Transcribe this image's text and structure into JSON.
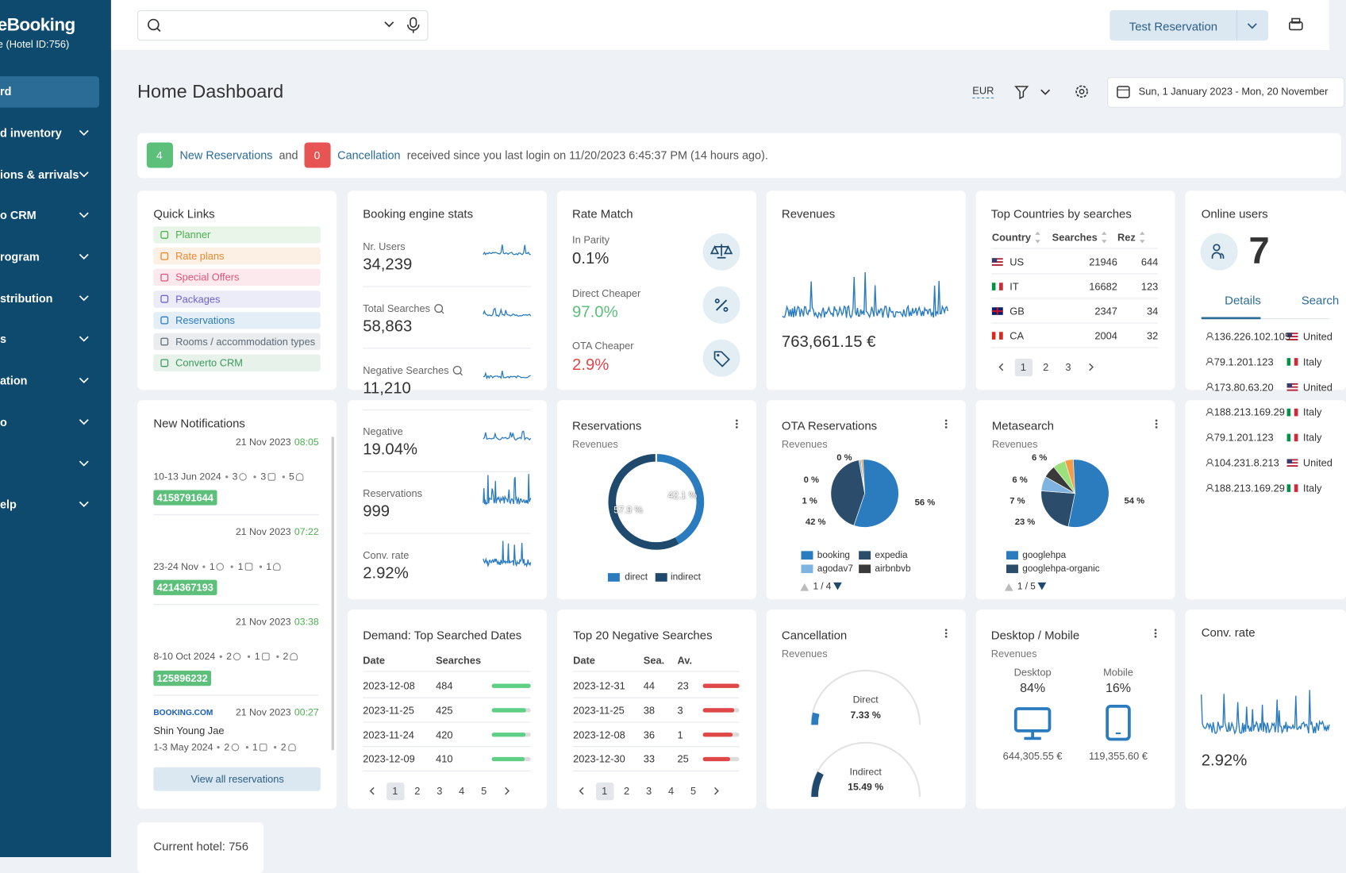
{
  "sidebar": {
    "brand": "eBooking",
    "hotel": "e (Hotel ID:756)",
    "menu": [
      "rd",
      "d inventory",
      "ions & arrivals",
      "o CRM",
      "rogram",
      "stribution",
      "s",
      "ation",
      "o",
      "elp"
    ]
  },
  "header": {
    "button": "Test Reservation"
  },
  "toolbar": {
    "title": "Home Dashboard",
    "currency": "EUR",
    "date_range": "Sun, 1 January 2023 - Mon, 20 November"
  },
  "alert": {
    "new_count": "4",
    "new_link": "New Reservations",
    "and": "and",
    "cancel_count": "0",
    "cancel_link": "Cancellation",
    "message": "received since you last login on 11/20/2023 6:45:37 PM (14 hours ago)."
  },
  "quick_links": {
    "title": "Quick Links",
    "items": [
      {
        "label": "Planner",
        "color": "#4caf50"
      },
      {
        "label": "Rate plans",
        "color": "#e8892c"
      },
      {
        "label": "Special Offers",
        "color": "#e0557a"
      },
      {
        "label": "Packages",
        "color": "#6b63c9"
      },
      {
        "label": "Reservations",
        "color": "#2b7bbf"
      },
      {
        "label": "Rooms / accommodation types",
        "color": "#5b6b7a"
      },
      {
        "label": "Converto CRM",
        "color": "#3d9a5c"
      }
    ]
  },
  "booking_engine": {
    "title": "Booking engine stats",
    "stats": [
      {
        "label": "Nr. Users",
        "value": "34,239"
      },
      {
        "label": "Total Searches",
        "value": "58,863",
        "zoom": true
      },
      {
        "label": "Negative Searches",
        "value": "11,210",
        "zoom": true
      },
      {
        "label": "Negative",
        "value": "19.04%"
      },
      {
        "label": "Reservations",
        "value": "999"
      },
      {
        "label": "Conv. rate",
        "value": "2.92%"
      }
    ]
  },
  "rate_match": {
    "title": "Rate Match",
    "items": [
      {
        "label": "In Parity",
        "value": "0.1%",
        "color": "#333333"
      },
      {
        "label": "Direct Cheaper",
        "value": "97.0%",
        "color": "#5cbf7a"
      },
      {
        "label": "OTA Cheaper",
        "value": "2.9%",
        "color": "#e04848"
      }
    ]
  },
  "revenues": {
    "title": "Revenues",
    "value": "763,661.15 €"
  },
  "top_countries": {
    "title": "Top Countries by searches",
    "columns": [
      "Country",
      "Searches",
      "Rez"
    ],
    "rows": [
      [
        "US",
        "21946",
        "644"
      ],
      [
        "IT",
        "16682",
        "123"
      ],
      [
        "GB",
        "2347",
        "34"
      ],
      [
        "CA",
        "2004",
        "32"
      ]
    ],
    "pages": [
      "1",
      "2",
      "3"
    ]
  },
  "online_users": {
    "title": "Online users",
    "count": "7",
    "tabs": [
      "Details",
      "Search"
    ],
    "rows": [
      {
        "ip": "136.226.102.105",
        "country": "United"
      },
      {
        "ip": "79.1.201.123",
        "country": "Italy"
      },
      {
        "ip": "173.80.63.20",
        "country": "United"
      },
      {
        "ip": "188.213.169.29",
        "country": "Italy"
      },
      {
        "ip": "79.1.201.123",
        "country": "Italy"
      },
      {
        "ip": "104.231.8.213",
        "country": "United"
      },
      {
        "ip": "188.213.169.29",
        "country": "Italy"
      }
    ]
  },
  "notifications": {
    "title": "New Notifications",
    "entries": [
      {
        "date": "21 Nov 2023",
        "time": "08:05",
        "dates": "10-13 Jun 2024",
        "nights": "3",
        "rooms": "3",
        "guests": "5",
        "code": "4158791644"
      },
      {
        "date": "21 Nov 2023",
        "time": "07:22",
        "dates": "23-24 Nov",
        "nights": "1",
        "rooms": "1",
        "guests": "1",
        "code": "4214367193"
      },
      {
        "date": "21 Nov 2023",
        "time": "03:38",
        "dates": "8-10 Oct 2024",
        "nights": "2",
        "rooms": "1",
        "guests": "2",
        "code": "125896232"
      },
      {
        "source": "BOOKING.COM",
        "date": "21 Nov 2023",
        "time": "00:27",
        "guest": "Shin Young Jae",
        "dates": "1-3 May 2024",
        "nights": "2",
        "rooms": "1",
        "guests": "2"
      }
    ],
    "button": "View all reservations"
  },
  "reservations": {
    "title": "Reservations",
    "subtitle": "Revenues",
    "slices": [
      {
        "name": "direct",
        "value": 42.1,
        "label": "42.1 %",
        "color": "#2b7bbf"
      },
      {
        "name": "indirect",
        "value": 57.9,
        "label": "57.9 %",
        "color": "#1f4a6e"
      }
    ]
  },
  "ota": {
    "title": "OTA Reservations",
    "subtitle": "Revenues",
    "slices": [
      {
        "value": 56,
        "label": "56 %",
        "color": "#2b7bbf"
      },
      {
        "value": 42,
        "label": "42 %",
        "color": "#2b4d6b"
      },
      {
        "value": 1,
        "label": "1 %",
        "color": "#7fb3e0"
      },
      {
        "value": 0,
        "label": "0 %",
        "color": "#3a3a3a"
      },
      {
        "value": 0,
        "label": "0 %",
        "color": "#9ccc65"
      }
    ],
    "legend": [
      {
        "name": "booking",
        "color": "#2b7bbf"
      },
      {
        "name": "expedia",
        "color": "#2b4d6b"
      },
      {
        "name": "agodav7",
        "color": "#7fb3e0"
      },
      {
        "name": "airbnbvb",
        "color": "#3a3a3a"
      }
    ],
    "pager": "1 / 4"
  },
  "metasearch": {
    "title": "Metasearch",
    "subtitle": "Revenues",
    "slices": [
      {
        "value": 54,
        "label": "54 %",
        "color": "#2b7bbf"
      },
      {
        "value": 23,
        "label": "23 %",
        "color": "#2b4d6b"
      },
      {
        "value": 7,
        "label": "7 %",
        "color": "#7fb3e0"
      },
      {
        "value": 6,
        "label": "6 %",
        "color": "#3a3a3a"
      },
      {
        "value": 6,
        "label": "6 %",
        "color": "#9be07a"
      }
    ],
    "legend": [
      {
        "name": "googlehpa",
        "color": "#2b7bbf"
      },
      {
        "name": "googlehpa-organic",
        "color": "#2b4d6b"
      }
    ],
    "pager": "1 / 5"
  },
  "demand": {
    "title": "Demand: Top Searched Dates",
    "columns": [
      "Date",
      "Searches"
    ],
    "rows": [
      [
        "2023-12-08",
        "484"
      ],
      [
        "2023-11-25",
        "425"
      ],
      [
        "2023-11-24",
        "420"
      ],
      [
        "2023-12-09",
        "410"
      ]
    ],
    "pages": [
      "1",
      "2",
      "3",
      "4",
      "5"
    ]
  },
  "negative": {
    "title": "Top 20 Negative Searches",
    "columns": [
      "Date",
      "Sea.",
      "Av."
    ],
    "rows": [
      [
        "2023-12-31",
        "44",
        "23"
      ],
      [
        "2023-11-25",
        "38",
        "3"
      ],
      [
        "2023-12-08",
        "36",
        "1"
      ],
      [
        "2023-12-30",
        "33",
        "25"
      ]
    ],
    "pages": [
      "1",
      "2",
      "3",
      "4",
      "5"
    ]
  },
  "cancellation": {
    "title": "Cancellation",
    "subtitle": "Revenues",
    "gauges": [
      {
        "name": "Direct",
        "value": 7.33,
        "label": "7.33 %"
      },
      {
        "name": "Indirect",
        "value": 15.49,
        "label": "15.49 %"
      }
    ]
  },
  "devices": {
    "title": "Desktop / Mobile",
    "subtitle": "Revenues",
    "items": [
      {
        "name": "Desktop",
        "share": "84%",
        "revenue": "644,305.55 €"
      },
      {
        "name": "Mobile",
        "share": "16%",
        "revenue": "119,355.60 €"
      }
    ]
  },
  "conv_rate": {
    "title": "Conv. rate",
    "value": "2.92%"
  },
  "footer": {
    "current_hotel": "Current hotel: 756"
  }
}
